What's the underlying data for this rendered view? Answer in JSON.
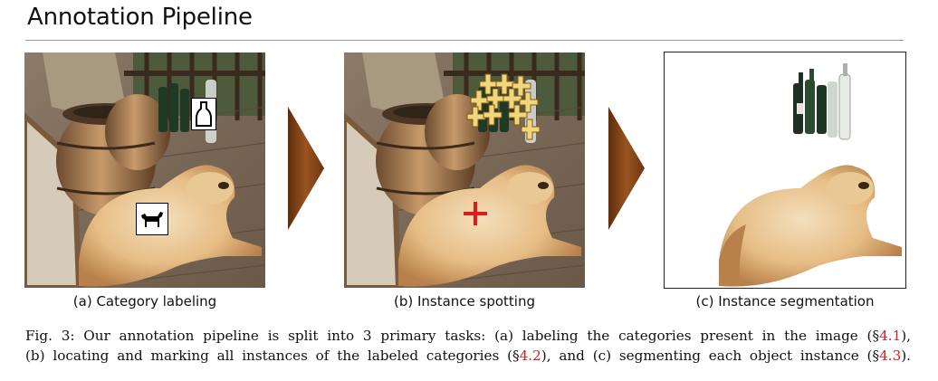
{
  "title": "Annotation Pipeline",
  "panels": [
    {
      "caption": "(a) Category labeling",
      "icons": [
        "bottle-icon",
        "dog-icon"
      ]
    },
    {
      "caption": "(b) Instance spotting",
      "markers": {
        "bottle_count": 11,
        "dog_count": 1
      }
    },
    {
      "caption": "(c) Instance segmentation"
    }
  ],
  "colors": {
    "arrow": "#8a4716",
    "bottle_marker": "#f2d67a",
    "dog_marker": "#e01b1b",
    "reference": "#d21f1f"
  },
  "figure_caption": {
    "line1": {
      "prefix": "Fig. 3: Our annotation pipeline is split into 3 primary tasks: (a) labeling the categories present in the image (§",
      "ref": "4.1",
      "suffix": "),"
    },
    "line2": {
      "part1": "(b) locating and marking all instances of the labeled categories (§",
      "ref1": "4.2",
      "part2": "), and (c) segmenting each object instance (§",
      "ref2": "4.3",
      "part3": ")."
    }
  }
}
